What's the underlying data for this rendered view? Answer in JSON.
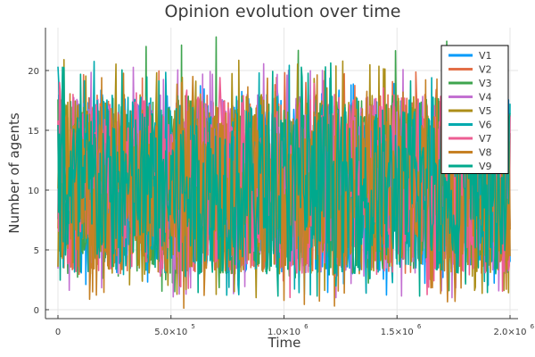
{
  "chart_data": {
    "type": "line",
    "title": "Opinion evolution over time",
    "xlabel": "Time",
    "ylabel": "Number of agents",
    "xlim": [
      0,
      2000000
    ],
    "ylim": [
      0,
      23
    ],
    "grid": true,
    "legend_position": "top-right",
    "x_ticks": [
      {
        "value": 0,
        "mantissa": "0",
        "exponent": ""
      },
      {
        "value": 500000,
        "mantissa": "5.0×10",
        "exponent": "5"
      },
      {
        "value": 1000000,
        "mantissa": "1.0×10",
        "exponent": "6"
      },
      {
        "value": 1500000,
        "mantissa": "1.5×10",
        "exponent": "6"
      },
      {
        "value": 2000000,
        "mantissa": "2.0×10",
        "exponent": "6"
      }
    ],
    "y_ticks": [
      0,
      5,
      10,
      15,
      20
    ],
    "series": [
      {
        "name": "V1",
        "color": "#009AFA",
        "band": {
          "low": 3,
          "high": 18,
          "min": 1,
          "max": 19
        }
      },
      {
        "name": "V2",
        "color": "#E36F47",
        "band": {
          "low": 3,
          "high": 18,
          "min": 2,
          "max": 20
        }
      },
      {
        "name": "V3",
        "color": "#3EA44E",
        "band": {
          "low": 3,
          "high": 18,
          "min": 1,
          "max": 23
        }
      },
      {
        "name": "V4",
        "color": "#C371D2",
        "band": {
          "low": 3,
          "high": 18,
          "min": 1,
          "max": 21
        }
      },
      {
        "name": "V5",
        "color": "#AC8E18",
        "band": {
          "low": 3,
          "high": 18,
          "min": 1,
          "max": 21
        }
      },
      {
        "name": "V6",
        "color": "#00AAAE",
        "band": {
          "low": 3,
          "high": 18,
          "min": 1,
          "max": 21
        }
      },
      {
        "name": "V7",
        "color": "#ED5E93",
        "band": {
          "low": 3,
          "high": 18,
          "min": 1,
          "max": 20
        }
      },
      {
        "name": "V8",
        "color": "#C68125",
        "band": {
          "low": 3,
          "high": 17,
          "min": 0,
          "max": 20
        }
      },
      {
        "name": "V9",
        "color": "#00A98D",
        "band": {
          "low": 3,
          "high": 17,
          "min": 1,
          "max": 21
        }
      }
    ]
  }
}
